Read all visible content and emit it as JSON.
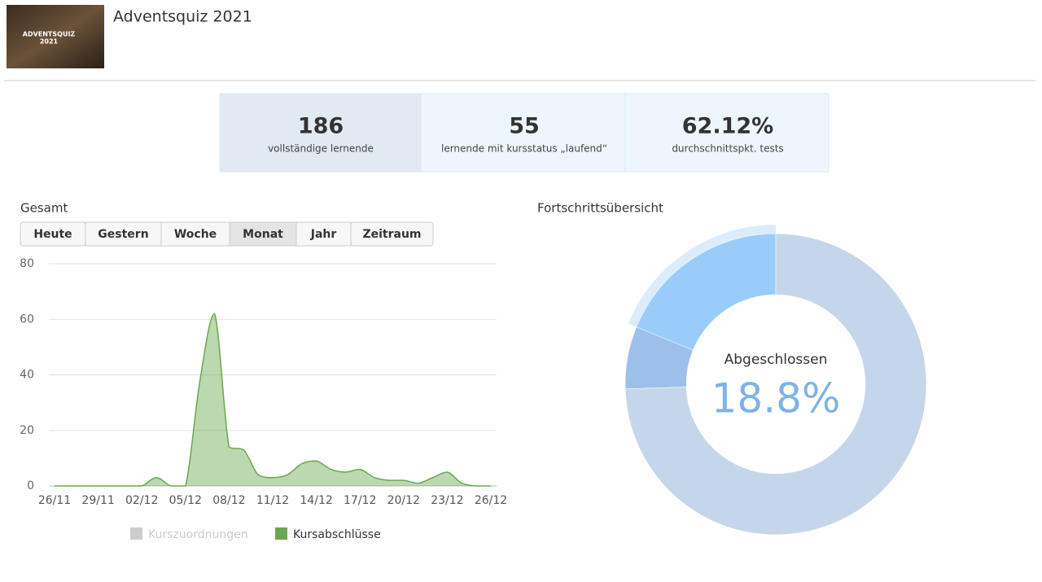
{
  "header": {
    "title": "Adventsquiz 2021",
    "thumbnail_lines": [
      "ADVENTSQUIZ",
      "2021"
    ]
  },
  "stats": [
    {
      "value": "186",
      "label": "vollständige lernende"
    },
    {
      "value": "55",
      "label": "lernende mit kursstatus „laufend“"
    },
    {
      "value": "62.12%",
      "label": "durchschnittspkt. tests"
    }
  ],
  "chart_data": [
    {
      "type": "area",
      "title": "Gesamt",
      "tabs": [
        "Heute",
        "Gestern",
        "Woche",
        "Monat",
        "Jahr",
        "Zeitraum"
      ],
      "active_tab": 3,
      "categories": [
        "26/11",
        null,
        null,
        "29/11",
        null,
        null,
        "02/12",
        null,
        null,
        "05/12",
        null,
        null,
        "08/12",
        null,
        null,
        "11/12",
        null,
        null,
        "14/12",
        null,
        null,
        "17/12",
        null,
        null,
        "20/12",
        null,
        null,
        "23/12",
        null,
        null,
        "26/12"
      ],
      "ylim": [
        0,
        80
      ],
      "yticks": [
        0,
        20,
        40,
        60,
        80
      ],
      "grid": true,
      "legend": "bottom",
      "series": [
        {
          "name": "Kurszuordnungen",
          "color": "#cccccc",
          "visible": false,
          "values": [
            null,
            null,
            null,
            null,
            null,
            null,
            null,
            null,
            null,
            null,
            null,
            null,
            null,
            null,
            null,
            null,
            null,
            null,
            null,
            null,
            null,
            null,
            null,
            null,
            null,
            null,
            null,
            null,
            null,
            null,
            null
          ]
        },
        {
          "name": "Kursabschlüsse",
          "color": "#6aa84f",
          "visible": true,
          "values": [
            0,
            0,
            0,
            0,
            0,
            0,
            0,
            3,
            0,
            0,
            38,
            62,
            14,
            13,
            4,
            3,
            4,
            8,
            9,
            6,
            5,
            6,
            3,
            2,
            2,
            1,
            3,
            5,
            1,
            0,
            0
          ]
        }
      ]
    },
    {
      "type": "donut",
      "title": "Fortschrittsübersicht",
      "categories": [
        "Abgeschlossen",
        null,
        null
      ],
      "values": [
        18.8,
        6.7,
        74.5
      ],
      "value_labels": [
        "18.8%",
        null,
        null
      ],
      "colors": [
        "#99ccf9",
        "#9dc0ea",
        "#c6d6ea"
      ],
      "highlight": 0
    }
  ]
}
